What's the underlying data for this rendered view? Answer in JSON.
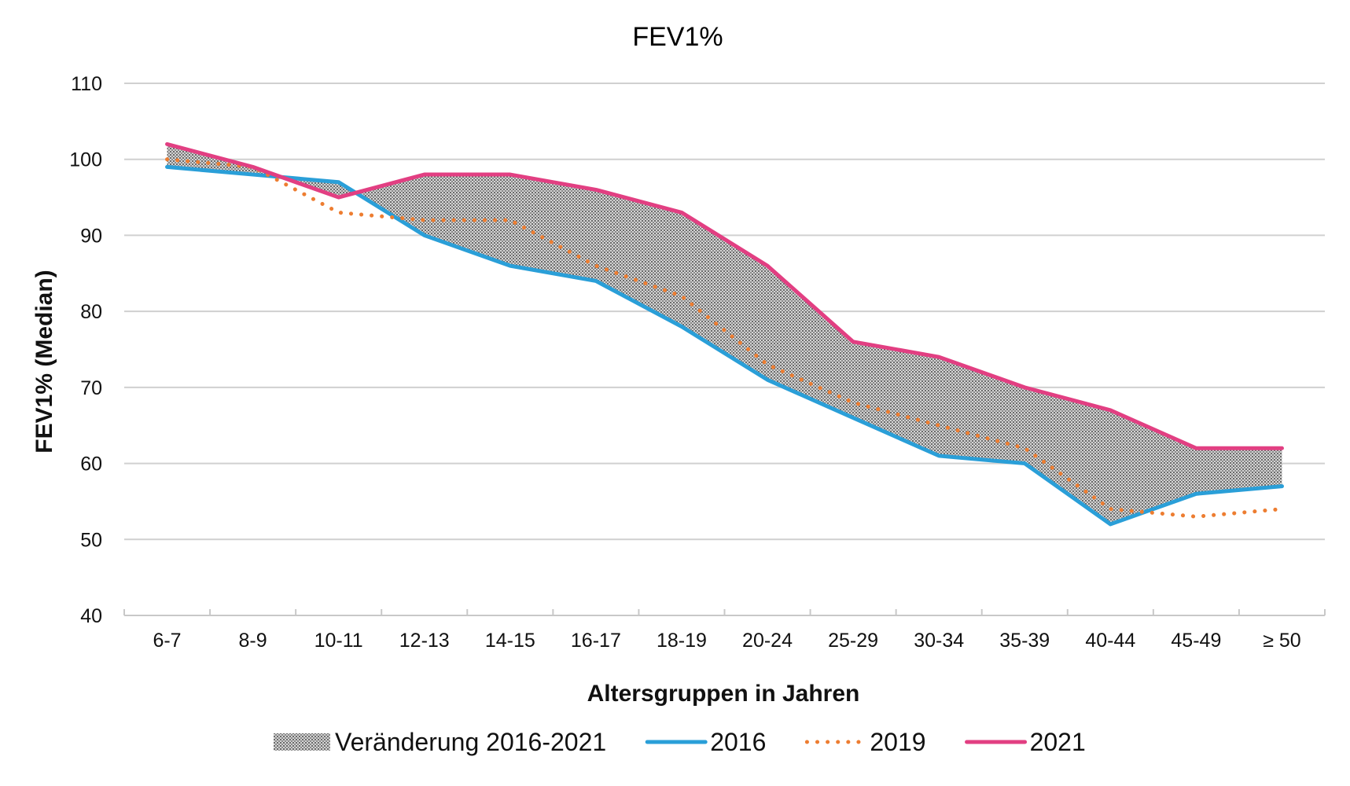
{
  "chart_data": {
    "type": "line",
    "title": "FEV1%",
    "xlabel": "Altersgruppen in Jahren",
    "ylabel": "FEV1% (Median)",
    "ylim": [
      40,
      110
    ],
    "yticks": [
      40,
      50,
      60,
      70,
      80,
      90,
      100,
      110
    ],
    "grid": true,
    "legend_position": "bottom",
    "categories": [
      "6-7",
      "8-9",
      "10-11",
      "12-13",
      "14-15",
      "16-17",
      "18-19",
      "20-24",
      "25-29",
      "30-34",
      "35-39",
      "40-44",
      "45-49",
      "≥ 50"
    ],
    "band": {
      "name": "Veränderung 2016-2021",
      "between": [
        "2016",
        "2021"
      ],
      "fill": "dotted gray pattern"
    },
    "series": [
      {
        "name": "2016",
        "style": "solid",
        "color": "#2a9fd8",
        "values": [
          99,
          98,
          97,
          90,
          86,
          84,
          78,
          71,
          66,
          61,
          60,
          52,
          56,
          57
        ]
      },
      {
        "name": "2019",
        "style": "dotted",
        "color": "#ed7d31",
        "values": [
          100,
          99,
          93,
          92,
          92,
          86,
          82,
          73,
          68,
          65,
          62,
          54,
          53,
          54
        ]
      },
      {
        "name": "2021",
        "style": "solid",
        "color": "#e23f82",
        "values": [
          102,
          99,
          95,
          98,
          98,
          96,
          93,
          86,
          76,
          74,
          70,
          67,
          62,
          62
        ]
      }
    ],
    "legend": [
      {
        "label": "Veränderung 2016-2021",
        "kind": "band"
      },
      {
        "label": "2016",
        "kind": "solid",
        "color": "#2a9fd8"
      },
      {
        "label": "2019",
        "kind": "dotted",
        "color": "#ed7d31"
      },
      {
        "label": "2021",
        "kind": "solid",
        "color": "#e23f82"
      }
    ]
  }
}
